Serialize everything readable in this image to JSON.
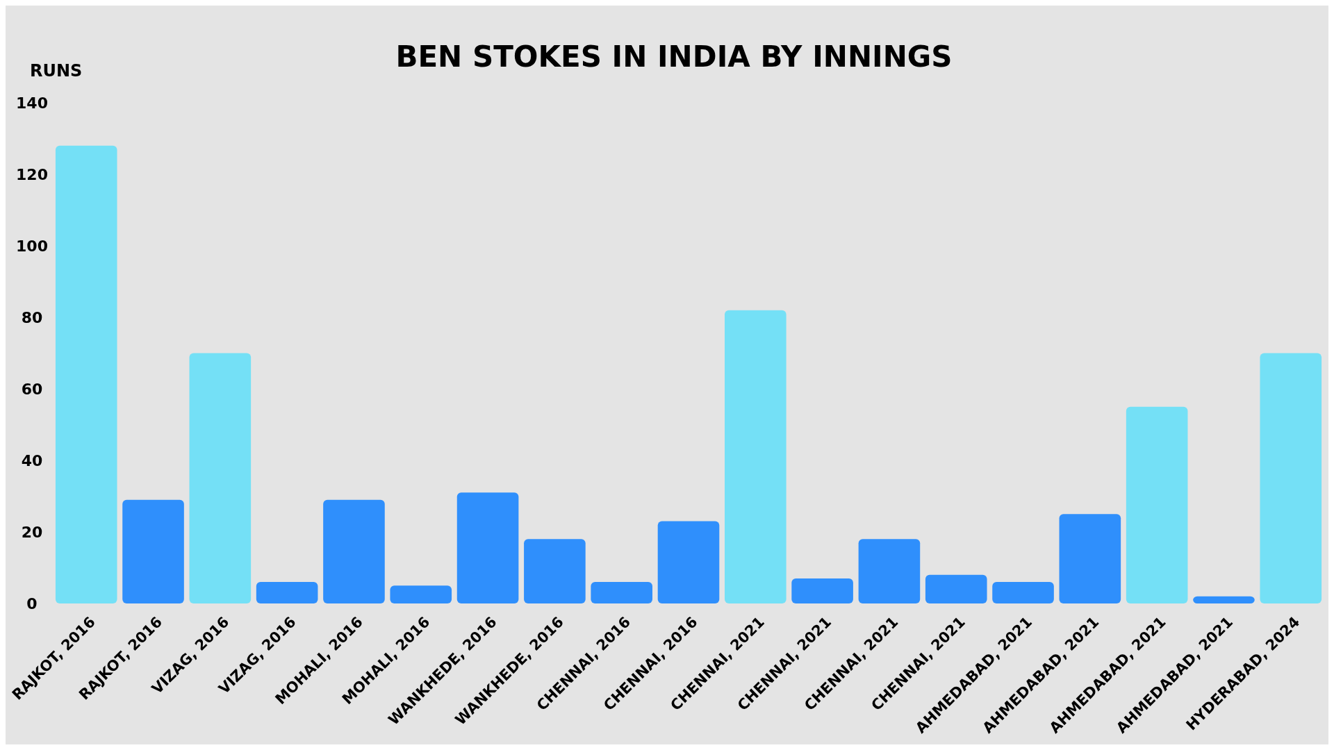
{
  "chart_data": {
    "type": "bar",
    "title": "BEN STOKES IN INDIA BY INNINGS",
    "ylabel": "RUNS",
    "categories": [
      "RAJKOT, 2016",
      "RAJKOT, 2016",
      "VIZAG, 2016",
      "VIZAG, 2016",
      "MOHALI, 2016",
      "MOHALI, 2016",
      "WANKHEDE, 2016",
      "WANKHEDE, 2016",
      "CHENNAI, 2016",
      "CHENNAI, 2016",
      "CHENNAI, 2021",
      "CHENNAI, 2021",
      "CHENNAI, 2021",
      "CHENNAI, 2021",
      "AHMEDABAD, 2021",
      "AHMEDABAD, 2021",
      "AHMEDABAD, 2021",
      "AHMEDABAD, 2021",
      "HYDERABAD, 2024"
    ],
    "values": [
      128,
      29,
      70,
      6,
      29,
      5,
      31,
      18,
      6,
      23,
      82,
      7,
      18,
      8,
      6,
      25,
      55,
      2,
      70
    ],
    "colors": [
      "#74e0f6",
      "#2f8ffc",
      "#74e0f6",
      "#2f8ffc",
      "#2f8ffc",
      "#2f8ffc",
      "#2f8ffc",
      "#2f8ffc",
      "#2f8ffc",
      "#2f8ffc",
      "#74e0f6",
      "#2f8ffc",
      "#2f8ffc",
      "#2f8ffc",
      "#2f8ffc",
      "#2f8ffc",
      "#74e0f6",
      "#2f8ffc",
      "#74e0f6"
    ],
    "ylim": [
      0,
      140
    ],
    "yticks": [
      0,
      20,
      40,
      60,
      80,
      100,
      120,
      140
    ]
  }
}
